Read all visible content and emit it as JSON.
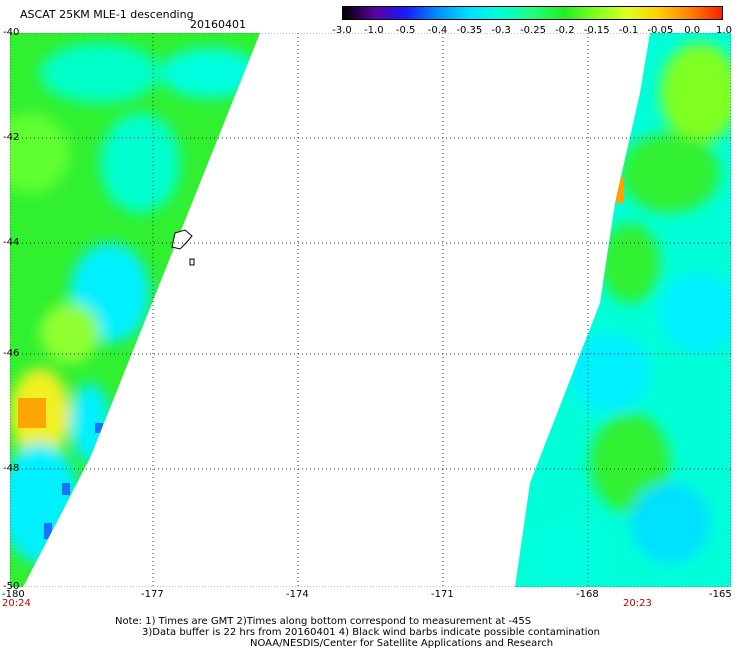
{
  "header": {
    "title": "ASCAT 25KM MLE-1 descending",
    "date": "20160401"
  },
  "colorbar": {
    "labels": [
      "-3.0",
      "-1.0",
      "-0.5",
      "-0.4",
      "-0.35",
      "-0.3",
      "-0.25",
      "-0.2",
      "-0.15",
      "-0.1",
      "-0.05",
      "0.0",
      "1.0"
    ],
    "colors": [
      "#000000",
      "#5a00a0",
      "#1a1aff",
      "#0090ff",
      "#00e0ff",
      "#00ffd8",
      "#20ff80",
      "#20f020",
      "#80ff20",
      "#e0ff20",
      "#ffd000",
      "#ff8000",
      "#ff2000"
    ]
  },
  "axes": {
    "lon_labels": [
      "-180",
      "-177",
      "-174",
      "-171",
      "-168",
      "-165"
    ],
    "lat_labels": [
      "-40",
      "-42",
      "-44",
      "-46",
      "-48",
      "-50"
    ],
    "time_labels": [
      "20:24",
      "20:23"
    ]
  },
  "notes": {
    "line1": "Note: 1) Times are GMT 2)Times along bottom correspond to measurement at -45S",
    "line2": "3)Data buffer is 22 hrs from 20160401 4) Black wind barbs indicate possible contamination",
    "line3": "NOAA/NESDIS/Center for Satellite Applications and Research"
  }
}
